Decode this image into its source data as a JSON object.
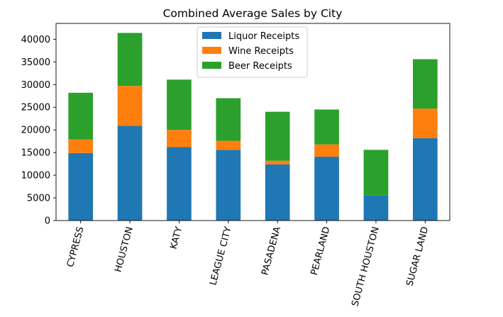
{
  "chart_data": {
    "type": "bar",
    "stacked": true,
    "title": "Combined Average Sales by City",
    "xlabel": "",
    "ylabel": "",
    "categories": [
      "CYPRESS",
      "HOUSTON",
      "KATY",
      "LEAGUE CITY",
      "PASADENA",
      "PEARLAND",
      "SOUTH HOUSTON",
      "SUGAR LAND"
    ],
    "series": [
      {
        "name": "Liquor Receipts",
        "color": "#1f77b4",
        "values": [
          14900,
          20900,
          16200,
          15600,
          12400,
          14100,
          5500,
          18200
        ]
      },
      {
        "name": "Wine Receipts",
        "color": "#ff7f0e",
        "values": [
          3000,
          8800,
          3800,
          2000,
          800,
          2700,
          0,
          6500
        ]
      },
      {
        "name": "Beer Receipts",
        "color": "#2ca02c",
        "values": [
          10300,
          11700,
          11100,
          9400,
          10800,
          7700,
          10100,
          10900
        ]
      }
    ],
    "ylim": [
      0,
      43500
    ],
    "yticks": [
      0,
      5000,
      10000,
      15000,
      20000,
      25000,
      30000,
      35000,
      40000
    ],
    "grid": false,
    "legend_position": "top-center",
    "xtick_rotation": 75
  }
}
